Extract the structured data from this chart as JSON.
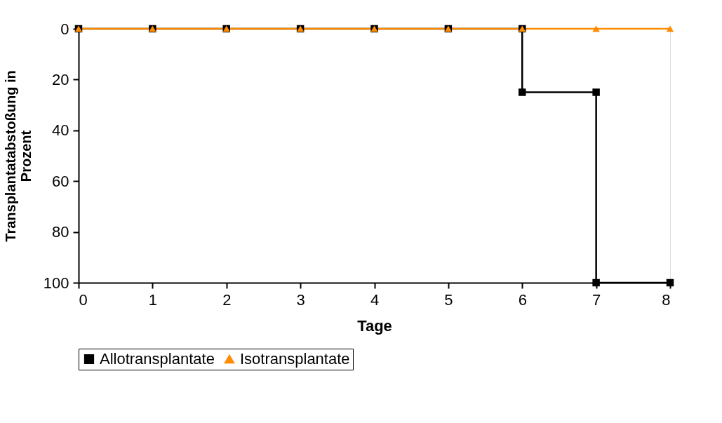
{
  "chart_data": {
    "type": "line",
    "xlabel": "Tage",
    "ylabel": "Transplantatabstoßung in Prozent",
    "xlim": [
      0,
      8
    ],
    "xticks": [
      0,
      1,
      2,
      3,
      4,
      5,
      6,
      7,
      8
    ],
    "ylim": [
      100,
      0
    ],
    "yticks": [
      0,
      20,
      40,
      60,
      80,
      100
    ],
    "grid": false,
    "legend": "bottom",
    "line_style": "solid",
    "series": [
      {
        "name": "Allotransplantate",
        "color": "#000000",
        "marker": "square",
        "x": [
          0,
          1,
          2,
          3,
          4,
          5,
          6,
          6,
          7,
          7,
          8
        ],
        "values": [
          0,
          0,
          0,
          0,
          0,
          0,
          0,
          25,
          25,
          100,
          100
        ]
      },
      {
        "name": "Isotransplantate",
        "color": "#ff8c00",
        "marker": "triangle",
        "x": [
          0,
          1,
          2,
          3,
          4,
          5,
          6,
          7,
          8
        ],
        "values": [
          0,
          0,
          0,
          0,
          0,
          0,
          0,
          0,
          0
        ]
      }
    ]
  }
}
